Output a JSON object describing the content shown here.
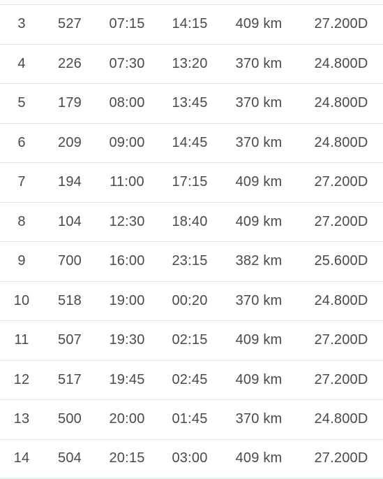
{
  "table": {
    "rows": [
      {
        "idx": "3",
        "num": "527",
        "dep": "07:15",
        "arr": "14:15",
        "dist": "409 km",
        "price": "27.200D"
      },
      {
        "idx": "4",
        "num": "226",
        "dep": "07:30",
        "arr": "13:20",
        "dist": "370 km",
        "price": "24.800D"
      },
      {
        "idx": "5",
        "num": "179",
        "dep": "08:00",
        "arr": "13:45",
        "dist": "370 km",
        "price": "24.800D"
      },
      {
        "idx": "6",
        "num": "209",
        "dep": "09:00",
        "arr": "14:45",
        "dist": "370 km",
        "price": "24.800D"
      },
      {
        "idx": "7",
        "num": "194",
        "dep": "11:00",
        "arr": "17:15",
        "dist": "409 km",
        "price": "27.200D"
      },
      {
        "idx": "8",
        "num": "104",
        "dep": "12:30",
        "arr": "18:40",
        "dist": "409 km",
        "price": "27.200D"
      },
      {
        "idx": "9",
        "num": "700",
        "dep": "16:00",
        "arr": "23:15",
        "dist": "382 km",
        "price": "25.600D"
      },
      {
        "idx": "10",
        "num": "518",
        "dep": "19:00",
        "arr": "00:20",
        "dist": "370 km",
        "price": "24.800D"
      },
      {
        "idx": "11",
        "num": "507",
        "dep": "19:30",
        "arr": "02:15",
        "dist": "409 km",
        "price": "27.200D"
      },
      {
        "idx": "12",
        "num": "517",
        "dep": "19:45",
        "arr": "02:45",
        "dist": "409 km",
        "price": "27.200D"
      },
      {
        "idx": "13",
        "num": "500",
        "dep": "20:00",
        "arr": "01:45",
        "dist": "370 km",
        "price": "24.800D"
      },
      {
        "idx": "14",
        "num": "504",
        "dep": "20:15",
        "arr": "03:00",
        "dist": "409 km",
        "price": "27.200D"
      }
    ]
  }
}
